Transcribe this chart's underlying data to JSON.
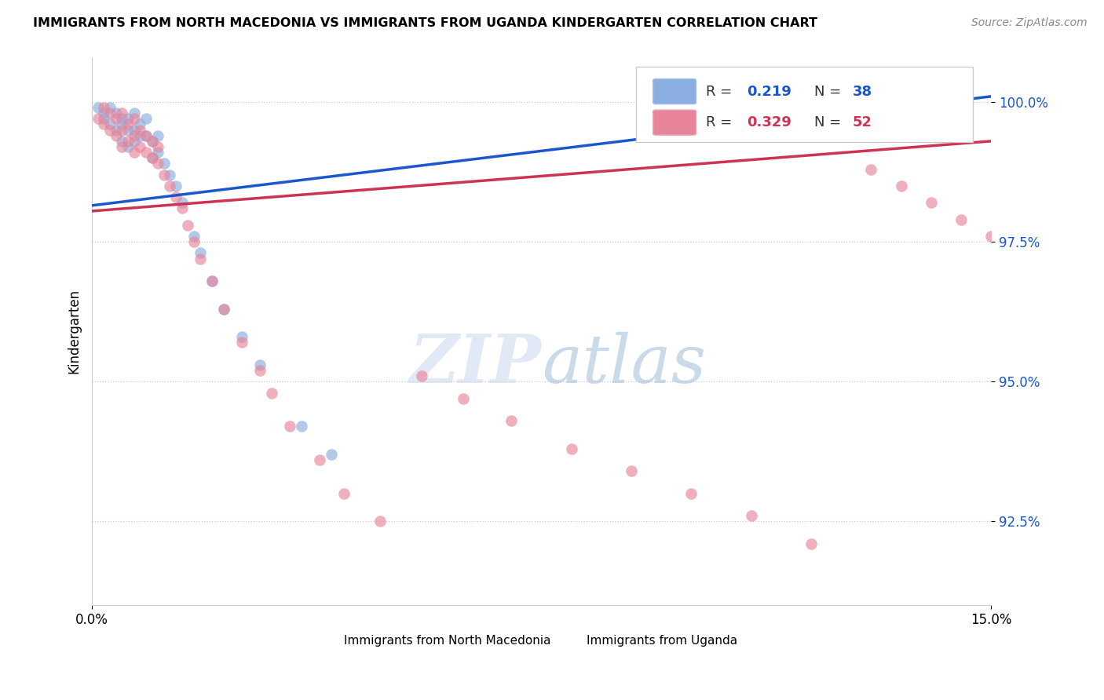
{
  "title": "IMMIGRANTS FROM NORTH MACEDONIA VS IMMIGRANTS FROM UGANDA KINDERGARTEN CORRELATION CHART",
  "source_text": "Source: ZipAtlas.com",
  "ylabel": "Kindergarten",
  "x_min": 0.0,
  "x_max": 0.15,
  "y_min": 0.91,
  "y_max": 1.008,
  "x_ticks": [
    0.0,
    0.15
  ],
  "x_tick_labels": [
    "0.0%",
    "15.0%"
  ],
  "y_ticks": [
    0.925,
    0.95,
    0.975,
    1.0
  ],
  "y_tick_labels": [
    "92.5%",
    "95.0%",
    "97.5%",
    "100.0%"
  ],
  "blue_color": "#89AEDF",
  "pink_color": "#E8849A",
  "blue_line_color": "#1A56CC",
  "pink_line_color": "#CC3355",
  "watermark_color": "#C8D8EE",
  "north_macedonia_x": [
    0.001,
    0.002,
    0.002,
    0.003,
    0.003,
    0.004,
    0.004,
    0.005,
    0.005,
    0.005,
    0.006,
    0.006,
    0.006,
    0.007,
    0.007,
    0.007,
    0.008,
    0.008,
    0.009,
    0.009,
    0.01,
    0.01,
    0.011,
    0.011,
    0.012,
    0.013,
    0.014,
    0.015,
    0.017,
    0.018,
    0.02,
    0.022,
    0.025,
    0.028,
    0.035,
    0.04,
    0.12,
    0.13
  ],
  "north_macedonia_y": [
    0.999,
    0.998,
    0.997,
    0.999,
    0.996,
    0.998,
    0.995,
    0.997,
    0.996,
    0.993,
    0.997,
    0.995,
    0.992,
    0.998,
    0.995,
    0.993,
    0.996,
    0.994,
    0.997,
    0.994,
    0.993,
    0.99,
    0.994,
    0.991,
    0.989,
    0.987,
    0.985,
    0.982,
    0.976,
    0.973,
    0.968,
    0.963,
    0.958,
    0.953,
    0.942,
    0.937,
    0.998,
    1.0
  ],
  "uganda_x": [
    0.001,
    0.002,
    0.002,
    0.003,
    0.003,
    0.004,
    0.004,
    0.005,
    0.005,
    0.005,
    0.006,
    0.006,
    0.007,
    0.007,
    0.007,
    0.008,
    0.008,
    0.009,
    0.009,
    0.01,
    0.01,
    0.011,
    0.011,
    0.012,
    0.013,
    0.014,
    0.015,
    0.016,
    0.017,
    0.018,
    0.02,
    0.022,
    0.025,
    0.028,
    0.03,
    0.033,
    0.038,
    0.042,
    0.048,
    0.055,
    0.062,
    0.07,
    0.08,
    0.09,
    0.1,
    0.11,
    0.12,
    0.13,
    0.135,
    0.14,
    0.145,
    0.15
  ],
  "uganda_y": [
    0.997,
    0.999,
    0.996,
    0.998,
    0.995,
    0.997,
    0.994,
    0.998,
    0.995,
    0.992,
    0.996,
    0.993,
    0.997,
    0.994,
    0.991,
    0.995,
    0.992,
    0.994,
    0.991,
    0.993,
    0.99,
    0.992,
    0.989,
    0.987,
    0.985,
    0.983,
    0.981,
    0.978,
    0.975,
    0.972,
    0.968,
    0.963,
    0.957,
    0.952,
    0.948,
    0.942,
    0.936,
    0.93,
    0.925,
    0.951,
    0.947,
    0.943,
    0.938,
    0.934,
    0.93,
    0.926,
    0.921,
    0.988,
    0.985,
    0.982,
    0.979,
    0.976
  ]
}
